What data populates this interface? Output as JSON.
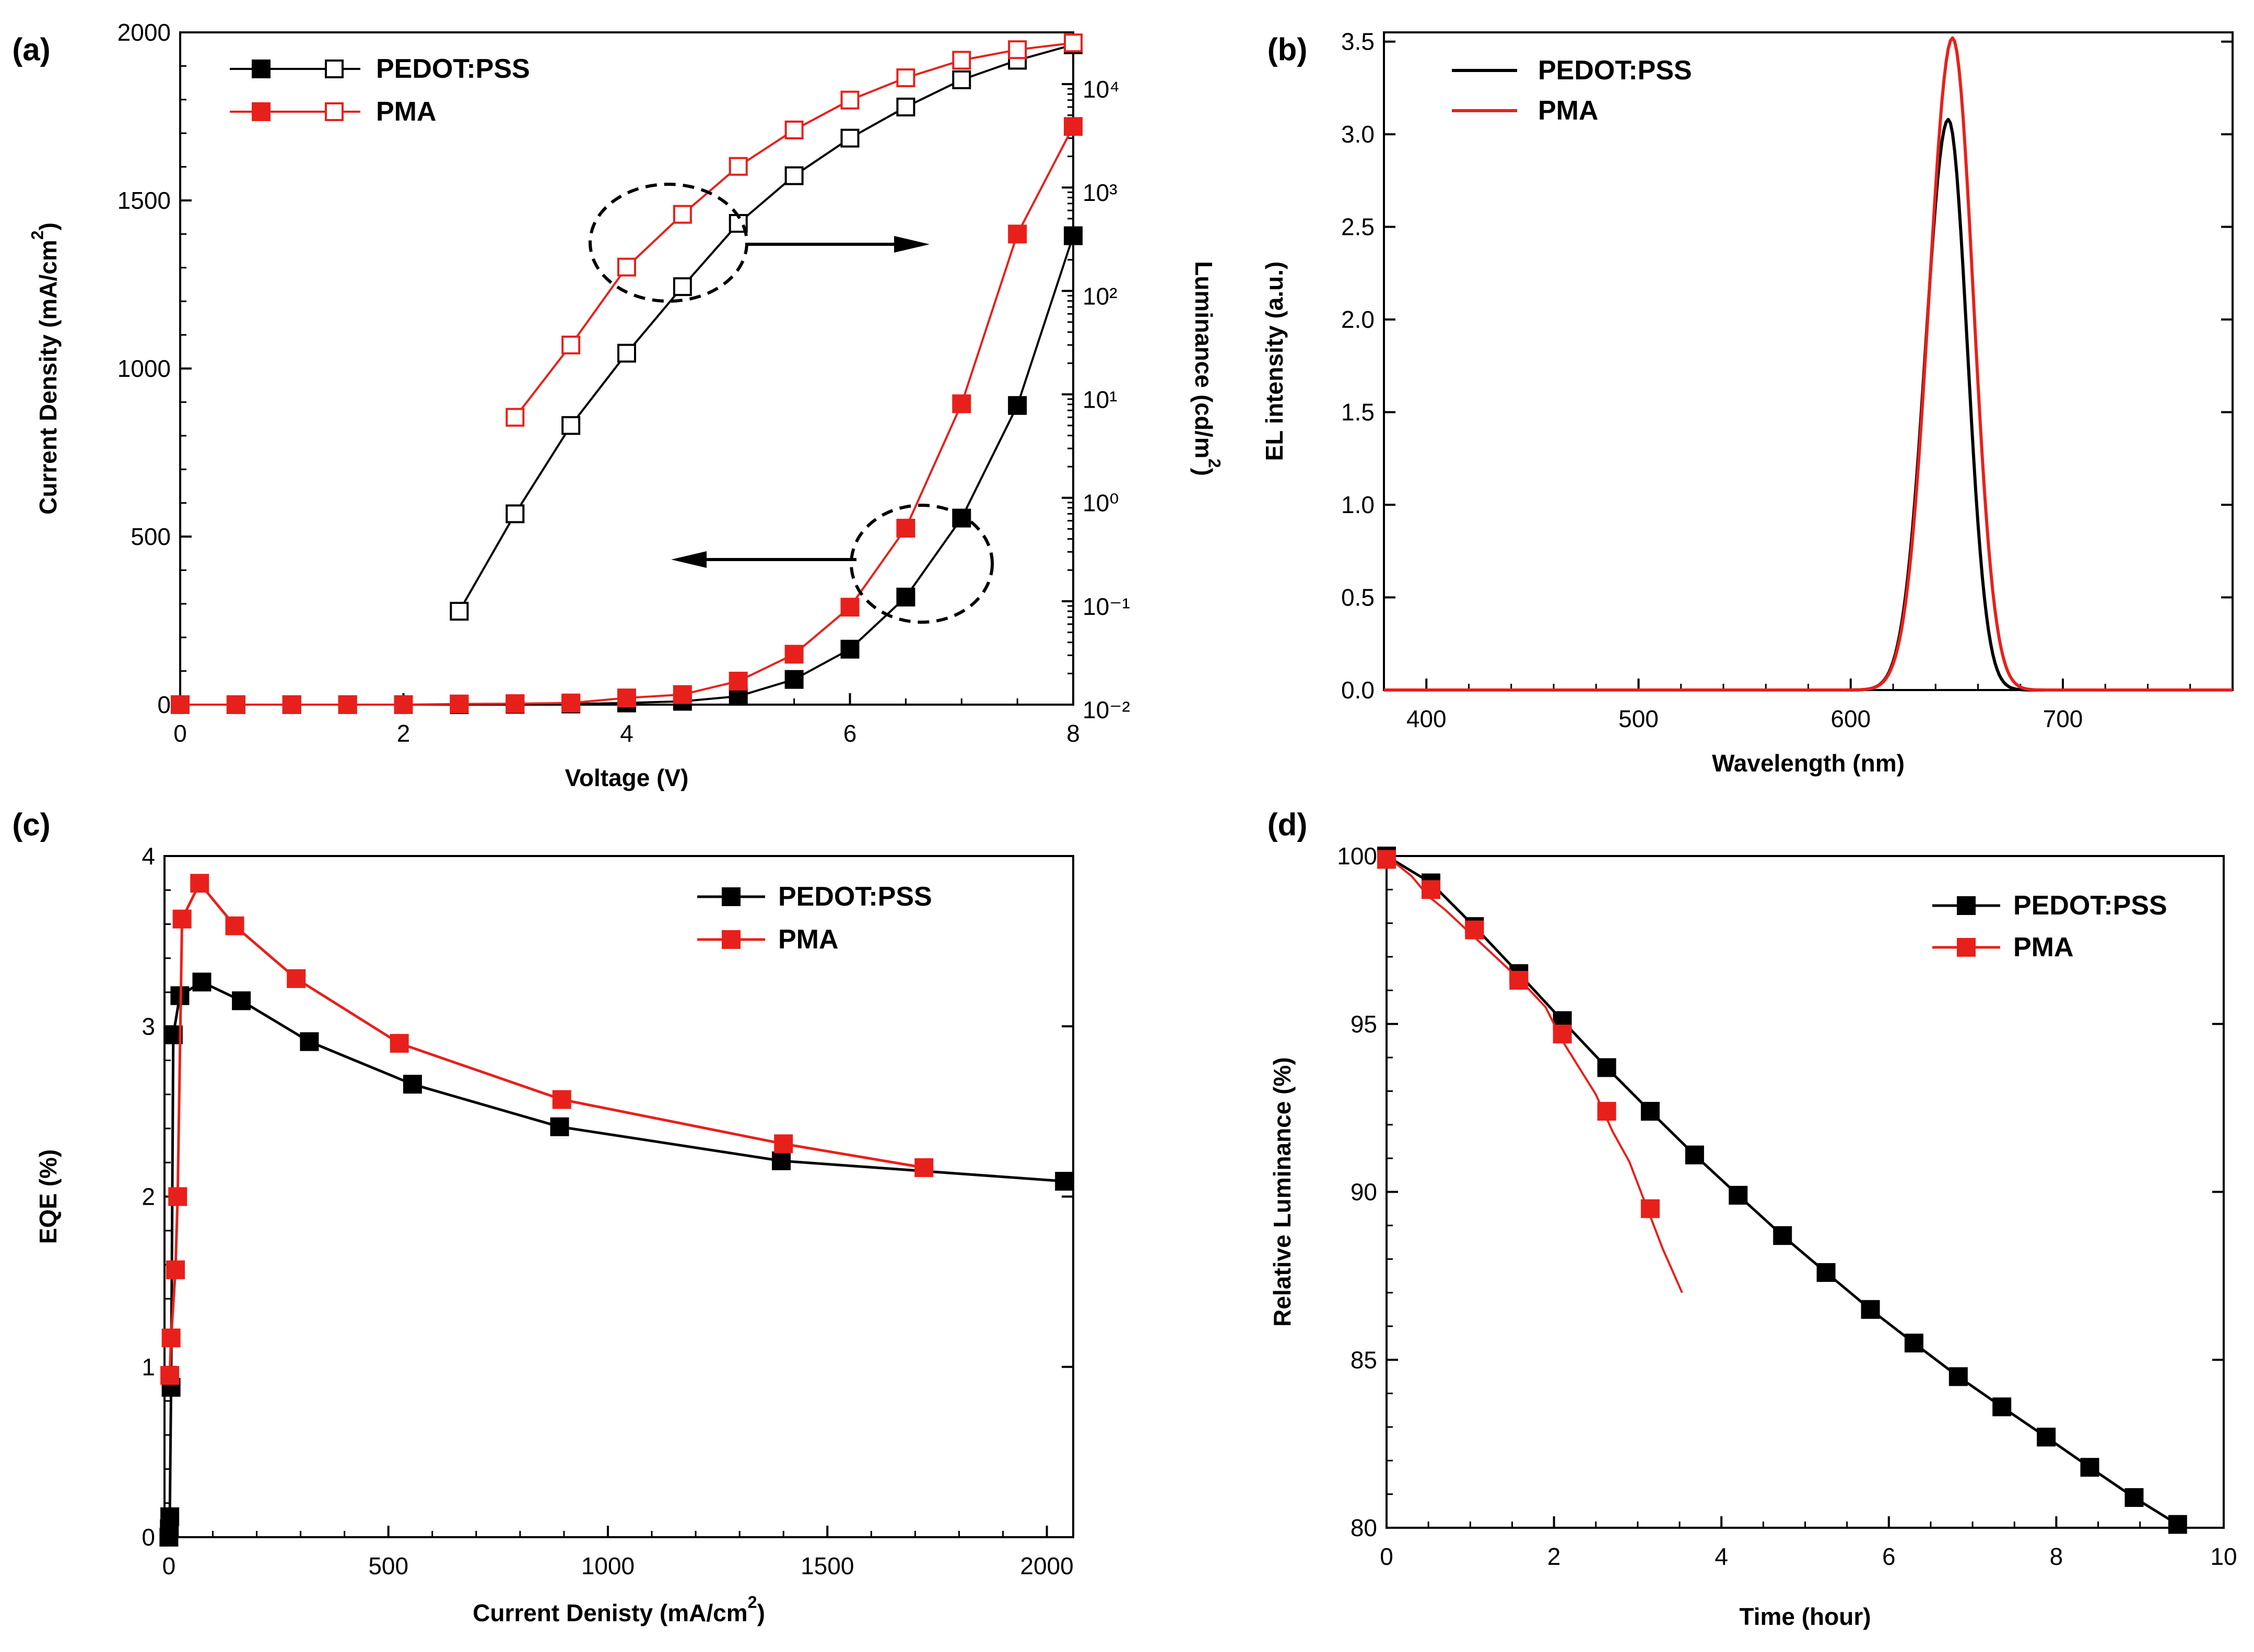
{
  "colors": {
    "black": "#000000",
    "red": "#e8201b"
  },
  "chart_data": [
    {
      "panel": "(a)",
      "type": "line",
      "title": "",
      "xlabel": "Voltage (V)",
      "ylabel": "Current Density (mA/cm²)",
      "y2label": "Luminance (cd/m²)",
      "xlim": [
        0,
        8
      ],
      "ylim": [
        0,
        2000
      ],
      "y2lim_log10": [
        -2,
        4.5
      ],
      "xticks": [
        "0",
        "2",
        "4",
        "6",
        "8"
      ],
      "yticks": [
        "0",
        "500",
        "1000",
        "1500",
        "2000"
      ],
      "y2ticks": [
        "10⁻²",
        "10⁻¹",
        "10⁰",
        "10¹",
        "10²",
        "10³",
        "10⁴"
      ],
      "legend": [
        "PEDOT:PSS",
        "PMA"
      ],
      "series": [
        {
          "name": "PEDOT:PSS current density",
          "axis": "left",
          "color": "black",
          "marker": "filled-square",
          "x": [
            0,
            0.5,
            1,
            1.5,
            2,
            2.5,
            3,
            3.5,
            4,
            4.5,
            5,
            5.5,
            6,
            6.5,
            7,
            7.5,
            8
          ],
          "y": [
            0,
            0,
            0,
            0,
            0,
            0,
            1,
            2,
            5,
            10,
            25,
            75,
            165,
            320,
            555,
            890,
            1395
          ]
        },
        {
          "name": "PMA current density",
          "axis": "left",
          "color": "red",
          "marker": "filled-square",
          "x": [
            0,
            0.5,
            1,
            1.5,
            2,
            2.5,
            3,
            3.5,
            4,
            4.5,
            5,
            5.5,
            6,
            6.5,
            7,
            7.5,
            8
          ],
          "y": [
            0,
            0,
            0,
            0,
            0,
            2,
            3,
            5,
            20,
            30,
            70,
            150,
            290,
            525,
            895,
            1400,
            1720
          ]
        },
        {
          "name": "PEDOT:PSS luminance",
          "axis": "right",
          "color": "black",
          "marker": "open-square",
          "x": [
            2.5,
            3,
            3.5,
            4,
            4.5,
            5,
            5.5,
            6,
            6.5,
            7,
            7.5,
            8
          ],
          "y": [
            0.08,
            0.7,
            5,
            25,
            110,
            450,
            1300,
            3000,
            6000,
            11000,
            17000,
            24000
          ]
        },
        {
          "name": "PMA luminance",
          "axis": "right",
          "color": "red",
          "marker": "open-square",
          "x": [
            3,
            3.5,
            4,
            4.5,
            5,
            5.5,
            6,
            6.5,
            7,
            7.5,
            8
          ],
          "y": [
            6,
            30,
            170,
            550,
            1600,
            3600,
            7000,
            11500,
            17000,
            21500,
            25000
          ]
        }
      ],
      "annotations": [
        "dashed ellipse around luminance curves with arrow to the right axis",
        "dashed ellipse around current density curves with arrow to the left axis"
      ]
    },
    {
      "panel": "(b)",
      "type": "line",
      "title": "",
      "xlabel": "Wavelength (nm)",
      "ylabel": "EL intensity (a.u.)",
      "xlim": [
        380,
        780
      ],
      "ylim": [
        0,
        3.55
      ],
      "xticks": [
        "400",
        "500",
        "600",
        "700"
      ],
      "yticks": [
        "0.0",
        "0.5",
        "1.0",
        "1.5",
        "2.0",
        "2.5",
        "3.0",
        "3.5"
      ],
      "legend": [
        "PEDOT:PSS",
        "PMA"
      ],
      "series": [
        {
          "name": "PEDOT:PSS",
          "color": "black",
          "peak_nm": 646,
          "peak": 3.08,
          "fwhm_left_nm": 25,
          "fwhm_right_nm": 21
        },
        {
          "name": "PMA",
          "color": "red",
          "peak_nm": 648,
          "peak": 3.52,
          "fwhm_left_nm": 26,
          "fwhm_right_nm": 23
        }
      ]
    },
    {
      "panel": "(c)",
      "type": "line",
      "title": "",
      "xlabel": "Current Denisty (mA/cm²)",
      "ylabel": "EQE (%)",
      "xlim": [
        -10,
        2060
      ],
      "ylim": [
        0,
        4
      ],
      "xticks": [
        "0",
        "500",
        "1000",
        "1500",
        "2000"
      ],
      "yticks": [
        "0",
        "1",
        "2",
        "3",
        "4"
      ],
      "legend": [
        "PEDOT:PSS",
        "PMA"
      ],
      "series": [
        {
          "name": "PEDOT:PSS",
          "color": "black",
          "marker": "filled-square",
          "x": [
            0,
            1,
            2,
            5,
            10,
            25,
            75,
            165,
            320,
            555,
            890,
            1395,
            2040
          ],
          "y": [
            0.0,
            0.05,
            0.12,
            0.88,
            2.95,
            3.18,
            3.26,
            3.15,
            2.91,
            2.66,
            2.41,
            2.21,
            2.09
          ]
        },
        {
          "name": "PMA",
          "color": "red",
          "marker": "filled-square",
          "x": [
            2,
            5,
            15,
            20,
            30,
            70,
            150,
            290,
            525,
            895,
            1400,
            1720
          ],
          "y": [
            0.95,
            1.17,
            1.57,
            2.0,
            3.63,
            3.84,
            3.59,
            3.28,
            2.9,
            2.57,
            2.31,
            2.17
          ]
        }
      ]
    },
    {
      "panel": "(d)",
      "type": "line",
      "title": "",
      "xlabel": "Time (hour)",
      "ylabel": "Relative Luminance (%)",
      "xlim": [
        0,
        10
      ],
      "ylim": [
        80,
        100
      ],
      "xticks": [
        "0",
        "2",
        "4",
        "6",
        "8",
        "10"
      ],
      "yticks": [
        "80",
        "85",
        "90",
        "95",
        "100"
      ],
      "legend": [
        "PEDOT:PSS",
        "PMA"
      ],
      "series": [
        {
          "name": "PEDOT:PSS",
          "color": "black",
          "marker": "filled-square",
          "x": [
            0,
            0.53,
            1.05,
            1.58,
            2.1,
            2.63,
            3.15,
            3.68,
            4.2,
            4.73,
            5.25,
            5.78,
            6.3,
            6.83,
            7.35,
            7.88,
            8.4,
            8.93,
            9.45
          ],
          "y": [
            100,
            99.2,
            97.9,
            96.5,
            95.1,
            93.7,
            92.4,
            91.1,
            89.9,
            88.7,
            87.6,
            86.5,
            85.5,
            84.5,
            83.6,
            82.7,
            81.8,
            80.9,
            80.1
          ]
        },
        {
          "name": "PMA",
          "color": "red",
          "marker": "filled-square",
          "x": [
            0,
            0.53,
            1.05,
            1.58,
            2.1,
            2.63,
            3.15
          ],
          "y": [
            99.9,
            99.0,
            97.8,
            96.3,
            94.7,
            92.4,
            89.5
          ],
          "noisy_trace_x": [
            0,
            0.3,
            0.5,
            0.7,
            1.0,
            1.3,
            1.6,
            1.9,
            2.1,
            2.3,
            2.5,
            2.7,
            2.9,
            3.1,
            3.3,
            3.53
          ],
          "noisy_trace_y": [
            100,
            99.4,
            98.8,
            98.4,
            97.7,
            97.0,
            96.3,
            95.5,
            94.5,
            93.7,
            92.9,
            91.8,
            90.9,
            89.6,
            88.3,
            87.0
          ]
        }
      ]
    }
  ]
}
